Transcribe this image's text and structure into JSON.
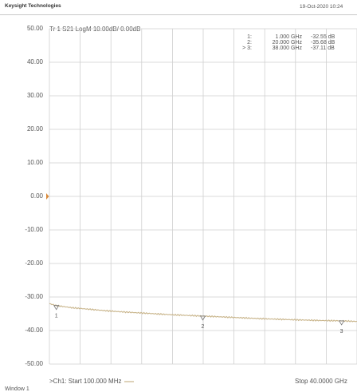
{
  "header": {
    "brand": "Keysight Technologies",
    "datetime": "19-Oct-2020  10:24"
  },
  "trace_label": "Tr 1  S21 LogM 10.00dB/  0.00dB",
  "y_tick_labels": [
    "50.00",
    "40.00",
    "30.00",
    "20.00",
    "10.00",
    "0.00",
    "-10.00",
    "-20.00",
    "-30.00",
    "-40.00",
    "-50.00"
  ],
  "marker_table": [
    {
      "name": "1:",
      "freq": "1.000 GHz",
      "value": "-32.55 dB"
    },
    {
      "name": "2:",
      "freq": "20.000 GHz",
      "value": "-35.68 dB"
    },
    {
      "name": "> 3:",
      "freq": "38.000 GHz",
      "value": "-37.11 dB"
    }
  ],
  "footer": {
    "start": ">Ch1: Start  100.000 MHz",
    "stop": "Stop  40.0000 GHz",
    "window": "Window 1"
  },
  "colors": {
    "trace": "#c8b48a",
    "grid": "#cfcfcf",
    "reference": "#d98a3a"
  },
  "chart_data": {
    "type": "line",
    "title": "Tr 1  S21 LogM 10.00dB/  0.00dB",
    "xlabel": "",
    "ylabel": "",
    "xlim": [
      0.1,
      40.0
    ],
    "ylim": [
      -50,
      50
    ],
    "y_ticks": [
      50,
      40,
      30,
      20,
      10,
      0,
      -10,
      -20,
      -30,
      -40,
      -50
    ],
    "grid": true,
    "reference_level": 0,
    "series": [
      {
        "x": [
          0.1,
          1.0,
          3.0,
          5.0,
          8.0,
          10.0,
          13.0,
          16.0,
          20.0,
          24.0,
          28.0,
          32.0,
          35.0,
          38.0,
          40.0
        ],
        "y": [
          -32.0,
          -32.55,
          -33.2,
          -33.6,
          -34.2,
          -34.5,
          -34.9,
          -35.3,
          -35.68,
          -36.1,
          -36.5,
          -36.8,
          -37.0,
          -37.11,
          -37.3
        ]
      }
    ],
    "markers": [
      {
        "label": "1",
        "x": 1.0,
        "y": -32.55
      },
      {
        "label": "2",
        "x": 20.0,
        "y": -35.68
      },
      {
        "label": "3",
        "x": 38.0,
        "y": -37.11
      }
    ]
  }
}
